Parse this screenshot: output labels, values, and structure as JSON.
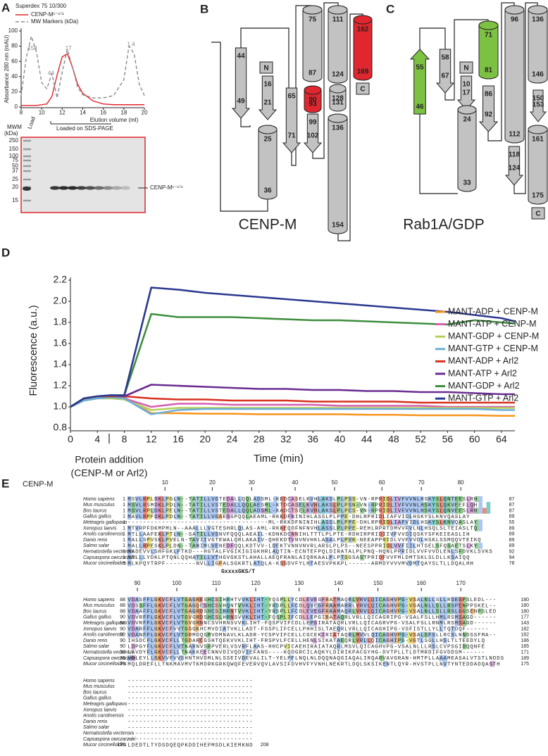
{
  "panel_labels": [
    "A",
    "B",
    "C",
    "D",
    "E"
  ],
  "chart_data": [
    {
      "type": "line",
      "legend_title": "Superdex 75 10/300",
      "y_label": "Absorbance 280 nm (mAU)",
      "x_label": "Elution volume (ml)",
      "x": [
        8,
        8.5,
        9,
        9.5,
        10,
        10.5,
        11,
        11.5,
        12,
        12.5,
        13,
        13.5,
        14,
        15,
        16,
        17,
        18,
        18.5,
        19,
        19.5,
        20
      ],
      "series": [
        {
          "name": "CENP-M¹⁻¹⁷¹",
          "color": "#e0262e",
          "values": [
            2,
            2,
            2,
            2,
            3,
            4,
            14,
            42,
            66,
            70,
            52,
            30,
            18,
            8,
            4,
            3,
            3,
            3,
            3,
            3,
            3
          ]
        },
        {
          "name": "MW Markers (kDa)",
          "color": "#8c8c8c",
          "line_style": "dashed",
          "values": [
            15,
            65,
            93,
            72,
            32,
            24,
            44,
            12,
            46,
            76,
            52,
            26,
            16,
            12,
            12,
            15,
            36,
            80,
            70,
            30,
            15
          ]
        }
      ],
      "xlim": [
        8,
        20
      ],
      "xticks": [
        8,
        10,
        12,
        14,
        16,
        18,
        20
      ],
      "ylim": [
        0,
        100
      ],
      "yticks": [
        0,
        20,
        40,
        60,
        80,
        100
      ],
      "annotations": [
        "158",
        "44",
        "17",
        "1.4"
      ]
    },
    {
      "type": "line",
      "y_label": "Fluorescence (a.u.)",
      "x_label": "Time (min)",
      "annotation": [
        "Protein addition",
        "(CENP-M or Arl2)"
      ],
      "x": [
        0,
        2,
        4,
        6,
        8,
        12,
        16,
        20,
        24,
        28,
        32,
        36,
        40,
        44,
        48,
        52,
        56,
        60,
        64,
        66
      ],
      "series": [
        {
          "name": "MANT-ADP + CENP-M",
          "color": "#f7941d",
          "values": [
            1.0,
            1.07,
            1.09,
            1.1,
            1.09,
            0.94,
            0.94,
            0.935,
            0.935,
            0.93,
            0.93,
            0.93,
            0.93,
            0.925,
            0.925,
            0.92,
            0.92,
            0.92,
            0.915,
            0.915
          ]
        },
        {
          "name": "MANT-ATP + CENP-M",
          "color": "#d65fb4",
          "values": [
            1.0,
            1.06,
            1.08,
            1.09,
            1.08,
            1.0,
            1.03,
            1.03,
            1.02,
            1.02,
            1.02,
            1.02,
            1.01,
            1.01,
            1.01,
            1.01,
            1.0,
            1.0,
            1.0,
            1.0
          ]
        },
        {
          "name": "MANT-GDP + CENP-M",
          "color": "#b5cf5a",
          "values": [
            1.0,
            1.06,
            1.08,
            1.08,
            1.07,
            0.97,
            0.99,
            0.99,
            0.99,
            0.99,
            0.99,
            0.99,
            0.99,
            0.99,
            0.99,
            0.99,
            0.99,
            0.99,
            0.99,
            0.99
          ]
        },
        {
          "name": "MANT-GTP + CENP-M",
          "color": "#6baed6",
          "values": [
            1.0,
            1.06,
            1.08,
            1.09,
            1.08,
            0.93,
            0.97,
            0.98,
            0.98,
            0.98,
            0.98,
            0.98,
            0.98,
            0.98,
            0.98,
            0.98,
            0.98,
            0.98,
            0.97,
            0.97
          ]
        },
        {
          "name": "MANT-ADP + Arl2",
          "color": "#d7301f",
          "values": [
            1.0,
            1.08,
            1.1,
            1.1,
            1.1,
            1.08,
            1.07,
            1.07,
            1.06,
            1.06,
            1.06,
            1.05,
            1.05,
            1.05,
            1.05,
            1.04,
            1.04,
            1.04,
            1.04,
            1.04
          ]
        },
        {
          "name": "MANT-ATP + Arl2",
          "color": "#6a2c91",
          "values": [
            1.0,
            1.08,
            1.1,
            1.11,
            1.1,
            1.21,
            1.2,
            1.19,
            1.18,
            1.17,
            1.17,
            1.16,
            1.16,
            1.15,
            1.15,
            1.14,
            1.14,
            1.13,
            1.12,
            1.12
          ]
        },
        {
          "name": "MANT-GDP + Arl2",
          "color": "#3e8e3e",
          "values": [
            1.0,
            1.08,
            1.1,
            1.11,
            1.11,
            1.88,
            1.85,
            1.85,
            1.85,
            1.84,
            1.83,
            1.82,
            1.82,
            1.81,
            1.8,
            1.79,
            1.78,
            1.82,
            1.8,
            1.79
          ]
        },
        {
          "name": "MANT-GTP + Arl2",
          "color": "#2b3990",
          "values": [
            1.0,
            1.08,
            1.1,
            1.11,
            1.11,
            2.13,
            2.11,
            2.08,
            2.06,
            2.04,
            2.02,
            2.0,
            1.98,
            1.96,
            1.94,
            1.92,
            1.9,
            1.87,
            1.84,
            1.81
          ]
        }
      ],
      "xlim": [
        0,
        66
      ],
      "xticks": [
        0,
        4,
        8,
        12,
        16,
        20,
        24,
        28,
        32,
        36,
        40,
        44,
        48,
        52,
        56,
        60,
        64
      ],
      "ylim": [
        0.8,
        2.2
      ],
      "yticks": [
        0.8,
        {
          "value": 1,
          "label": "1.0"
        },
        1.2,
        1.4,
        1.6,
        1.8,
        {
          "value": 2,
          "label": "2.0"
        },
        2.2
      ]
    }
  ],
  "gel": {
    "mwm_label": [
      "MWM",
      "(kDa)"
    ],
    "load_label": "Load",
    "markers": [
      250,
      150,
      100,
      75,
      50,
      37,
      25,
      20,
      15
    ],
    "band_label": "CENP-M¹⁻¹⁷¹",
    "caption": "Loaded on SDS-PAGE"
  },
  "topology_b": {
    "title": "CENP-M",
    "elements": [
      [
        44,
        49
      ],
      [
        "N"
      ],
      [
        16,
        21
      ],
      [
        25,
        36
      ],
      [
        65,
        71
      ],
      [
        75,
        87
      ],
      [
        90,
        93
      ],
      [
        99,
        102
      ],
      [
        111,
        124
      ],
      [
        128,
        131
      ],
      [
        136,
        154
      ],
      [
        162,
        169
      ],
      [
        "C"
      ]
    ]
  },
  "topology_c": {
    "title": "Rab1A/GDP",
    "elements": [
      [
        55,
        46
      ],
      [
        58,
        67
      ],
      [
        "N"
      ],
      [
        10,
        17
      ],
      [
        24,
        33
      ],
      [
        71,
        81
      ],
      [
        86,
        92
      ],
      [
        96,
        112
      ],
      [
        118,
        124
      ],
      [
        136,
        146
      ],
      [
        150,
        153
      ],
      [
        161,
        175
      ],
      [
        "C"
      ]
    ]
  },
  "alignment": {
    "title": "CENP-M",
    "motif": "GxxxxGKS/T",
    "blocks": [
      {
        "ruler": [
          10,
          20,
          30,
          40,
          50,
          60,
          70,
          80
        ],
        "rows": [
          {
            "species": "Homo sapiens",
            "start": 1,
            "seq": "MSVLRPLDKLPGLN--TATILLVGTEDALLQQLADSML-KEDCASELKVHLAKSLPLPSS-VN-RPRIDLIVFVVNLHSKYSLQNTEESLRH",
            "end": 87
          },
          {
            "species": "Mus musculus",
            "start": 1,
            "seq": "MSVLRSMDKLPDLN--TATILLVSTEDALLQQLAESML-KTDCASELKVHLAKSLPLPSN-VN-RPRIDLIVFVVNLHSKYSLQKVEEFLQH",
            "end": 87
          },
          {
            "species": "Bos taurus",
            "start": 1,
            "seq": "MSVLRPLDKLPELN--TATILLVSTEDALLQQLADSML-KADCTSELKVHLAKSLPLPCS-VN-RPRIDLIVFVVNLHSKYSLQNVEESLRH",
            "end": 87
          },
          {
            "species": "Gallus gallus",
            "start": 1,
            "seq": "MAVLRPFDKLPDLN--TATILLVGAEGGPQQLAEAML-RKKDFNINIHLASSLPLPPE-DHLRPRIDLIAFVIDLHSKYSLKNVQASLAY",
            "end": 89
          },
          {
            "species": "Meleagris gallopavo",
            "start": 1,
            "seq": "-------------------------------------ML-RKKDFNINIHLASSLPLPPE-DHLRPRIDLIAFVIDLHSKYSLKNVQASLAY",
            "end": 55
          },
          {
            "species": "Xenopus laevis",
            "start": 1,
            "seq": "MTVRPFDKMPMLN--AAALLLVGTESHRLQLAS-AML-RKKEQDFNFNVHLASSLPLPPE-REHLRPRTDMVVFVLNLHSQLSLTEIASLTQ",
            "end": 89
          },
          {
            "species": "Anolis carolinensis",
            "start": 1,
            "seq": "MTLLAAFEKLPTLN--SATILLVSNVFQQQLAEAIL-KDNKDCNNIHLTTTLPLPTE-RDHIRPRIDIIVFVVDIQSKYSFKEIEASLIH",
            "end": 89
          },
          {
            "species": "Danio rerio",
            "start": 1,
            "seq": "MALLSPVSKLPVELN-TAVIIVGTEWALQRLAKAIV-QHEKDTVNVNVHKLASALPLPVK-NEEAPPRIDLVVFVVDLHSKLSSMQQVTEIKQ",
            "end": 89
          },
          {
            "species": "Salmo salar",
            "start": 1,
            "seq": "MALLRPESKLPLDN--TANIMLVENEDFQQLKDTVV-LDEKTVNNVNVRLARSLPLPS--NEESPPRIDLVVFIILHTSELSFQSAETSLKY",
            "end": 89
          },
          {
            "species": "Nematostella vectensis",
            "start": 1,
            "seq": "MADEVVLSHFGKLPTKD---HGTALFVGIKIGIGKHRLAQTIN-ECNTEFPQLDIRATALPLPNQ-HQNLPPRIDLVVFVVDLENLSFDVKLSVKS",
            "end": 92
          },
          {
            "species": "Capsaspora owczarzaki",
            "start": 1,
            "seq": "MTLLLYDKLPTQNLQQHATILLVTHGVGKSTLAHALLAEQFRANLAIQRKAALPLPTSGSASTPRIDFVVFMLDMTSKLSLDLLKSAIQQ",
            "end": 94
          },
          {
            "species": "Mucor circinelloides",
            "start": 1,
            "seq": "MLKPQYTRPF--------NVLLIGPALSGKRTLATQLA-KSSDVFYLHTAESVPKKPL------ARMDYVVVMVDMTQAYSLTLLDQALHH",
            "end": 78
          }
        ]
      },
      {
        "ruler": [
          90,
          100,
          110,
          120,
          130,
          140,
          150,
          160,
          170
        ],
        "rows": [
          {
            "species": "Homo sapiens",
            "start": 88,
            "seq": "VDASFFLGKVCFLVTGAGRESHCSIHRHTVVKLIHT-YQSPLLYCDLEVEGFRATMAQRLVRVLQICAGHVPG-VSALNLLSLLRSEGPSLEDL---",
            "end": 180
          },
          {
            "species": "Mus musculus",
            "start": 88,
            "seq": "VDSSFFLGKVCFLVTGAGQESHCSVHQNTVVKLIHT-YRSPLLFCDLQVEGFRAAMARRLVRVLQICAGHVPG-VSALNLLSLLRSPENPPSKEL--",
            "end": 180
          },
          {
            "species": "Bos taurus",
            "start": 88,
            "seq": "VDAAFFLGKVCFLVTGAGRDSHCSIHRNTVVKLIHT-YRSPLLFCDLEVEGFRAAMAQRLVRVLQICAGHVPG-VSALNLLSLLRSLGGSENPSLED",
            "end": 180
          },
          {
            "species": "Gallus gallus",
            "start": 90,
            "seq": "VDVRFFLGKVCFLVTGVGRDSHCSLHRNSVVKLIHT-FQSPLIFCDLLEPGIRATAQRLVRLLQICAGRIPG-VSALFSLLHMLRSMSAGD------",
            "end": 177
          },
          {
            "species": "Meleagris gallopavo",
            "start": 56,
            "seq": "VDVRFFLGKVCFLVTGVGRNNCSVHRNSVVKLIHT-FQSPVIFCDLLEPGIRATAQRLVRLLQICAGRVPG-VSALFSLLRNMLRSMSAGD------",
            "end": 143
          },
          {
            "species": "Xenopus laevis",
            "start": 90,
            "seq": "VDARFFLGKVCFVVTGSGKHCMVDIATVKLLADT-FSSPLIFCELLPHHISLTAEQRLVRLLQICAGHIPG-VSFISTLLYLLTQTDQF------",
            "end": 182
          },
          {
            "species": "Anolis carolinensis",
            "start": 90,
            "seq": "VDANFFLGKVCFLVTGRMDQSMVDMNAVLKLADR-YCSPVIFCELLCGCEKIRIATAQRLMVVLQICAGHVPG-VSALSFSLLRCSLNNDSSFMA--",
            "end": 182
          },
          {
            "species": "Danio rerio",
            "start": 90,
            "seq": "IHSDCFLGKVCFLLTGDARCGSHTQEKVVKLIHT-FRSPVLFCELLHENLSIKATAEQRLVRLLQICAGHIPG-VGTLSGLLHSLTLTEEDYLQ",
            "end": 186
          },
          {
            "species": "Salmo salar",
            "start": 90,
            "seq": "LDPGYFLGKVCFLVTNARNVSRPVERLVSVRFLAAS-HHCPVICAEHIRAIATAQRLMSVLQICAGHVPG-VSALNLLLRSLCVPSGIDQQNFE",
            "end": 185
          },
          {
            "species": "Nematostella vectensis",
            "start": 93,
            "seq": "LAVDYFLGKVCFLLTNAKKEECNNVDIVQDVIEFANS----KQDGRCILAQKYLDIRIKPACGYHG-DVTPLLTLDTMRDIFGVDDSM------",
            "end": 171
          },
          {
            "species": "Capsaspora owczarzaki",
            "start": 95,
            "seq": "VDLEYLLGKVVFVVSHNTHVDMLNLSSEIVDEVALILT-YELPFLNQLNLDQQNAQGIAQALIRQARVAVGRAN-HMTPLLAAAMEASALVTSTLNDDS",
            "end": 189
          },
          {
            "species": "Mucor circinelloides",
            "start": 79,
            "seq": "MQLDREFLLTNKMAVMVTKMDRKGRKQWQFEVERVQVLAVSIFDVHVFYVNHLNEKRTLDQLSKSIKENTLQYR-HVSTPLLNVTYNTEDDADQASTH",
            "end": 175
          }
        ]
      },
      {
        "rows": [
          {
            "species": "Homo sapiens",
            "seq": "---------------------------------"
          },
          {
            "species": "Mus musculus",
            "seq": "---------------------------------"
          },
          {
            "species": "Bos taurus",
            "seq": "---------------------------------"
          },
          {
            "species": "Gallus gallus",
            "seq": "---------------------------------"
          },
          {
            "species": "Meleagris gallopavo",
            "seq": "---------------------------------"
          },
          {
            "species": "Xenopus laevis",
            "seq": "---------------------------------"
          },
          {
            "species": "Anolis carolinensis",
            "seq": "---------------------------------"
          },
          {
            "species": "Danio rerio",
            "seq": "---------------------------------"
          },
          {
            "species": "Salmo salar",
            "seq": "---------------------------------"
          },
          {
            "species": "Nematostella vectensis",
            "seq": "---------------------------------"
          },
          {
            "species": "Capsaspora owczarzaki",
            "seq": "---------------------------------"
          },
          {
            "species": "Mucor circinelloides",
            "start": 176,
            "seq": "LDEDTLTYDSDQEQPKDDIHEPMSDLKIEMKND",
            "end": 208
          }
        ]
      }
    ]
  }
}
